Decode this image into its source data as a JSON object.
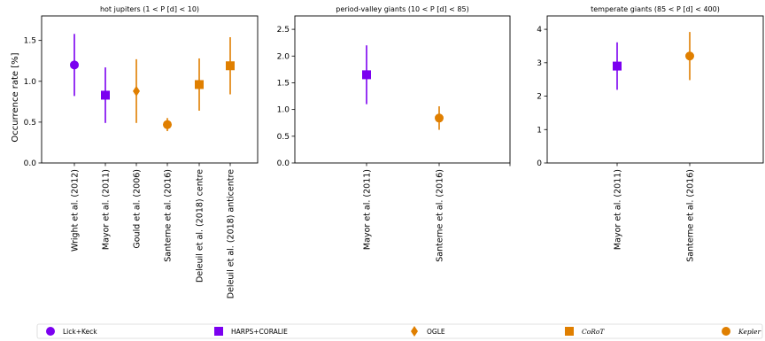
{
  "figure": {
    "ylabel": "Occurrence rate [%]"
  },
  "colors": {
    "purple": "#7b00f0",
    "orange": "#ff9500",
    "orange_dark": "#e07f00"
  },
  "chart_data": [
    {
      "type": "scatter",
      "title": "hot jupiters (1 < P [d] < 10)",
      "ylabel": "Occurrence rate [%]",
      "ylim": [
        0,
        1.8
      ],
      "yticks": [
        "0.0",
        "0.5",
        "1.0",
        "1.5"
      ],
      "ytick_values": [
        0,
        0.5,
        1.0,
        1.5
      ],
      "grid": false,
      "points": [
        {
          "label": "Wright et al. (2012)",
          "value": 1.2,
          "err_low": 0.38,
          "err_high": 0.38,
          "marker": "circle",
          "color": "#7b00f0",
          "survey": "Lick+Keck"
        },
        {
          "label": "Mayor et al. (2011)",
          "value": 0.83,
          "err_low": 0.34,
          "err_high": 0.34,
          "marker": "square",
          "color": "#7b00f0",
          "survey": "HARPS+CORALIE"
        },
        {
          "label": "Gould et al. (2006)",
          "value": 0.88,
          "err_low": 0.39,
          "err_high": 0.39,
          "marker": "diamond",
          "color": "#e07f00",
          "survey": "OGLE"
        },
        {
          "label": "Santerne et al. (2016)",
          "value": 0.47,
          "err_low": 0.08,
          "err_high": 0.08,
          "marker": "circle",
          "color": "#e07f00",
          "survey": "Kepler"
        },
        {
          "label": "Deleuil et al. (2018) centre",
          "value": 0.96,
          "err_low": 0.32,
          "err_high": 0.32,
          "marker": "square",
          "color": "#e07f00",
          "survey": "CoRoT"
        },
        {
          "label": "Deleuil et al. (2018) anticentre",
          "value": 1.19,
          "err_low": 0.35,
          "err_high": 0.35,
          "marker": "square",
          "color": "#e07f00",
          "survey": "CoRoT"
        }
      ]
    },
    {
      "type": "scatter",
      "title": "period-valley giants (10 < P [d] < 85)",
      "ylim": [
        0,
        2.75
      ],
      "yticks": [
        "0.0",
        "0.5",
        "1.0",
        "1.5",
        "2.0",
        "2.5"
      ],
      "ytick_values": [
        0,
        0.5,
        1.0,
        1.5,
        2.0,
        2.5
      ],
      "grid": false,
      "points": [
        {
          "label": "Mayor et al. (2011)",
          "value": 1.65,
          "err_low": 0.55,
          "err_high": 0.55,
          "marker": "square",
          "color": "#7b00f0",
          "survey": "HARPS+CORALIE"
        },
        {
          "label": "Santerne et al. (2016)",
          "value": 0.84,
          "err_low": 0.22,
          "err_high": 0.22,
          "marker": "circle",
          "color": "#e07f00",
          "survey": "Kepler"
        }
      ]
    },
    {
      "type": "scatter",
      "title": "temperate giants (85 < P [d] < 400)",
      "ylim": [
        0,
        4.4
      ],
      "yticks": [
        "0",
        "1",
        "2",
        "3",
        "4"
      ],
      "ytick_values": [
        0,
        1,
        2,
        3,
        4
      ],
      "grid": false,
      "points": [
        {
          "label": "Mayor et al. (2011)",
          "value": 2.9,
          "err_low": 0.71,
          "err_high": 0.71,
          "marker": "square",
          "color": "#7b00f0",
          "survey": "HARPS+CORALIE"
        },
        {
          "label": "Santerne et al. (2016)",
          "value": 3.2,
          "err_low": 0.72,
          "err_high": 0.72,
          "marker": "circle",
          "color": "#e07f00",
          "survey": "Kepler"
        }
      ]
    }
  ],
  "legend": {
    "placement": "bottom",
    "entries": [
      {
        "label": "Lick+Keck",
        "marker": "circle",
        "color": "#7b00f0",
        "italic": false
      },
      {
        "label": "HARPS+CORALIE",
        "marker": "square",
        "color": "#7b00f0",
        "italic": false
      },
      {
        "label": "OGLE",
        "marker": "diamond",
        "color": "#e07f00",
        "italic": false
      },
      {
        "label": "CoRoT",
        "marker": "square",
        "color": "#e07f00",
        "italic": true
      },
      {
        "label": "Kepler",
        "marker": "circle",
        "color": "#e07f00",
        "italic": true
      }
    ]
  }
}
